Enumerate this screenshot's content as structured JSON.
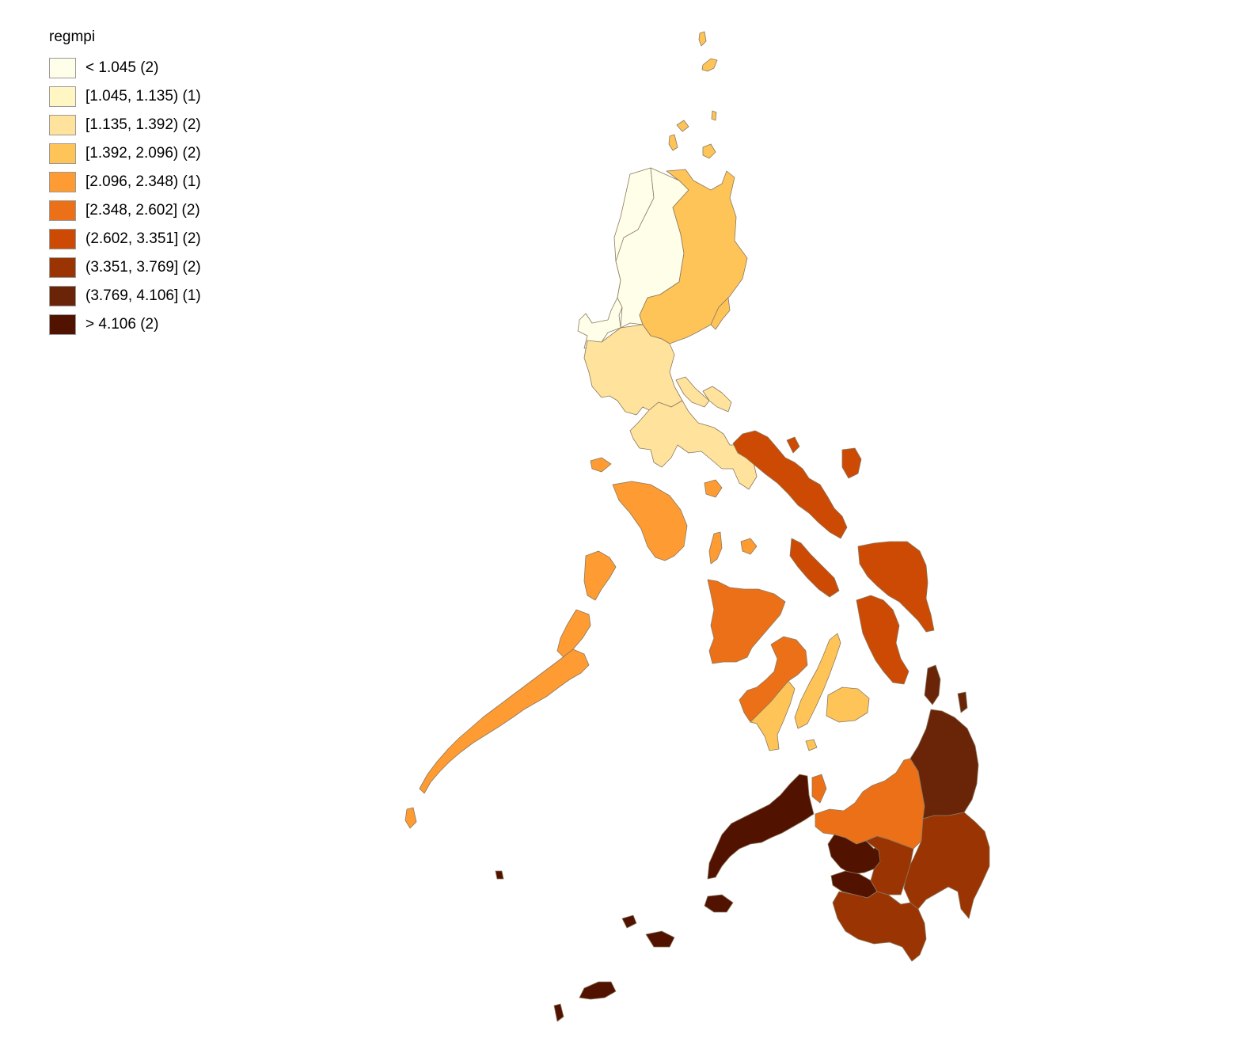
{
  "legend": {
    "title": "regmpi",
    "classes": [
      {
        "label": "< 1.045 (2)",
        "color": "#fffee8"
      },
      {
        "label": "[1.045, 1.135) (1)",
        "color": "#fff6c4"
      },
      {
        "label": "[1.135, 1.392) (2)",
        "color": "#ffe29c"
      },
      {
        "label": "[1.392, 2.096) (2)",
        "color": "#ffc458"
      },
      {
        "label": "[2.096, 2.348) (1)",
        "color": "#fe9b33"
      },
      {
        "label": "[2.348, 2.602] (2)",
        "color": "#ec7017"
      },
      {
        "label": "(2.602, 3.351] (2)",
        "color": "#cc4a04"
      },
      {
        "label": "(3.351, 3.769] (2)",
        "color": "#9a3403"
      },
      {
        "label": "(3.769, 4.106] (1)",
        "color": "#6a2508"
      },
      {
        "label": "> 4.106 (2)",
        "color": "#521200"
      }
    ]
  },
  "regions": [
    {
      "class": 0
    },
    {
      "class": 0
    },
    {
      "class": 1
    },
    {
      "class": 2
    },
    {
      "class": 2
    },
    {
      "class": 3
    },
    {
      "class": 3
    },
    {
      "class": 4
    },
    {
      "class": 5
    },
    {
      "class": 5
    },
    {
      "class": 6
    },
    {
      "class": 6
    },
    {
      "class": 7
    },
    {
      "class": 7
    },
    {
      "class": 8
    },
    {
      "class": 9
    },
    {
      "class": 9
    }
  ]
}
